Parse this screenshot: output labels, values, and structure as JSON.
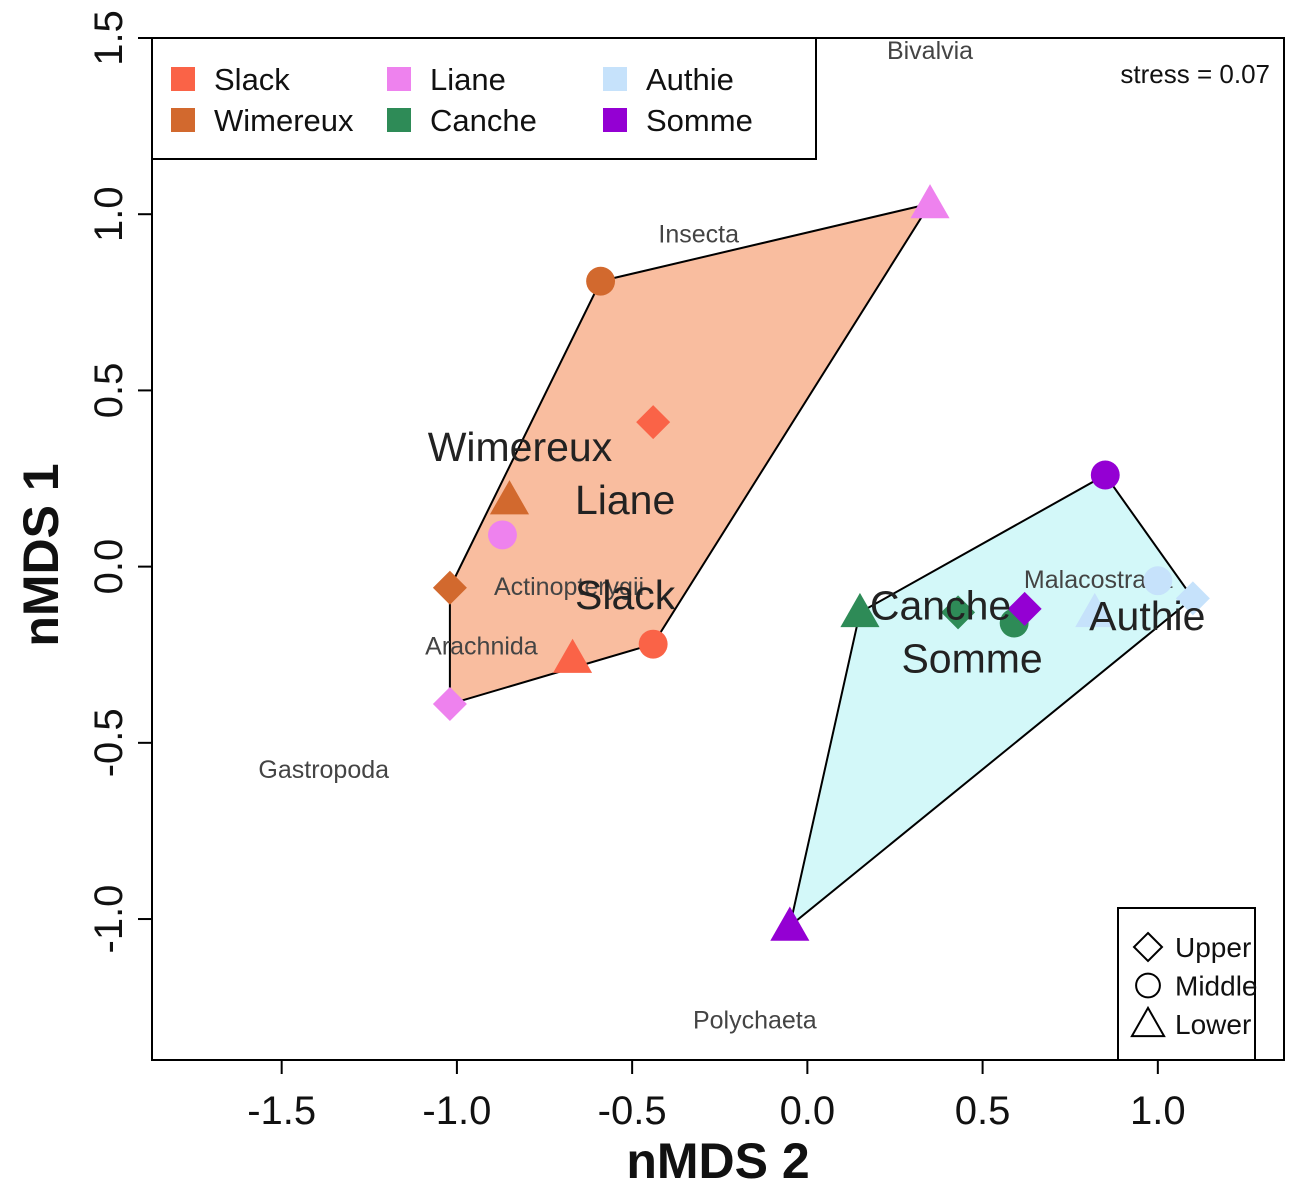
{
  "chart_data": {
    "type": "scatter",
    "xlabel": "nMDS 2",
    "ylabel": "nMDS 1",
    "xlim": [
      -1.87,
      1.36
    ],
    "ylim": [
      -1.4,
      1.5
    ],
    "xticks": [
      -1.5,
      -1.0,
      -0.5,
      0.0,
      0.5,
      1.0
    ],
    "xtick_labels": [
      "-1.5",
      "-1.0",
      "-0.5",
      "0.0",
      "0.5",
      "1.0"
    ],
    "yticks": [
      -1.0,
      -0.5,
      0.0,
      0.5,
      1.0,
      1.5
    ],
    "ytick_labels": [
      "-1.0",
      "-0.5",
      "0.0",
      "0.5",
      "1.0",
      "1.5"
    ],
    "grid": false,
    "annotation": "stress = 0.07",
    "site_legend": {
      "placement": "top-left",
      "entries": [
        {
          "name": "Slack",
          "color": "#fa6347"
        },
        {
          "name": "Wimereux",
          "color": "#d2692e"
        },
        {
          "name": "Liane",
          "color": "#ee82ee"
        },
        {
          "name": "Canche",
          "color": "#2e8b57"
        },
        {
          "name": "Authie",
          "color": "#c6e2fb"
        },
        {
          "name": "Somme",
          "color": "#9400d3"
        }
      ]
    },
    "shape_legend": {
      "placement": "bottom-right",
      "entries": [
        {
          "name": "Upper",
          "shape": "diamond"
        },
        {
          "name": "Middle",
          "shape": "circle"
        },
        {
          "name": "Lower",
          "shape": "triangle"
        }
      ]
    },
    "hulls": [
      {
        "fill": "#f9bd9f",
        "points": [
          [
            -1.02,
            -0.39
          ],
          [
            -1.02,
            -0.06
          ],
          [
            -0.59,
            0.81
          ],
          [
            0.35,
            1.03
          ],
          [
            -0.44,
            -0.22
          ]
        ]
      },
      {
        "fill": "#d3f8f9",
        "points": [
          [
            -0.05,
            -1.02
          ],
          [
            0.15,
            -0.13
          ],
          [
            0.85,
            0.26
          ],
          [
            1.1,
            -0.09
          ]
        ]
      }
    ],
    "series": [
      {
        "name": "Slack",
        "color": "#fa6347",
        "points": [
          {
            "x": -0.44,
            "y": 0.41,
            "position": "Upper"
          },
          {
            "x": -0.44,
            "y": -0.22,
            "position": "Middle"
          },
          {
            "x": -0.67,
            "y": -0.26,
            "position": "Lower"
          }
        ]
      },
      {
        "name": "Wimereux",
        "color": "#d2692e",
        "points": [
          {
            "x": -1.02,
            "y": -0.06,
            "position": "Upper"
          },
          {
            "x": -0.59,
            "y": 0.81,
            "position": "Middle"
          },
          {
            "x": -0.85,
            "y": 0.19,
            "position": "Lower"
          }
        ]
      },
      {
        "name": "Liane",
        "color": "#ee82ee",
        "points": [
          {
            "x": -1.02,
            "y": -0.39,
            "position": "Upper"
          },
          {
            "x": -0.87,
            "y": 0.09,
            "position": "Middle"
          },
          {
            "x": 0.35,
            "y": 1.03,
            "position": "Lower"
          }
        ]
      },
      {
        "name": "Canche",
        "color": "#2e8b57",
        "points": [
          {
            "x": 0.43,
            "y": -0.13,
            "position": "Upper"
          },
          {
            "x": 0.59,
            "y": -0.16,
            "position": "Middle"
          },
          {
            "x": 0.15,
            "y": -0.13,
            "position": "Lower"
          }
        ]
      },
      {
        "name": "Authie",
        "color": "#c6e2fb",
        "points": [
          {
            "x": 1.1,
            "y": -0.09,
            "position": "Upper"
          },
          {
            "x": 1.0,
            "y": -0.04,
            "position": "Middle"
          },
          {
            "x": 0.82,
            "y": -0.13,
            "position": "Lower"
          }
        ]
      },
      {
        "name": "Somme",
        "color": "#9400d3",
        "points": [
          {
            "x": 0.62,
            "y": -0.12,
            "position": "Upper"
          },
          {
            "x": 0.85,
            "y": 0.26,
            "position": "Middle"
          },
          {
            "x": -0.05,
            "y": -1.02,
            "position": "Lower"
          }
        ]
      }
    ],
    "group_labels": [
      {
        "text": "Wimereux",
        "x": -0.82,
        "y": 0.3
      },
      {
        "text": "Liane",
        "x": -0.52,
        "y": 0.15
      },
      {
        "text": "Slack",
        "x": -0.52,
        "y": -0.12
      },
      {
        "text": "Canche",
        "x": 0.38,
        "y": -0.15
      },
      {
        "text": "Somme",
        "x": 0.47,
        "y": -0.3
      },
      {
        "text": "Authie",
        "x": 0.97,
        "y": -0.18
      }
    ],
    "taxa_labels": [
      {
        "text": "Bivalvia",
        "x": 0.35,
        "y": 1.44
      },
      {
        "text": "Insecta",
        "x": -0.31,
        "y": 0.92
      },
      {
        "text": "Actinopterygii",
        "x": -0.68,
        "y": -0.08
      },
      {
        "text": "Arachnida",
        "x": -0.93,
        "y": -0.25
      },
      {
        "text": "Gastropoda",
        "x": -1.38,
        "y": -0.6
      },
      {
        "text": "Malacostraca",
        "x": 0.83,
        "y": -0.06
      },
      {
        "text": "Polychaeta",
        "x": -0.15,
        "y": -1.31
      }
    ]
  }
}
